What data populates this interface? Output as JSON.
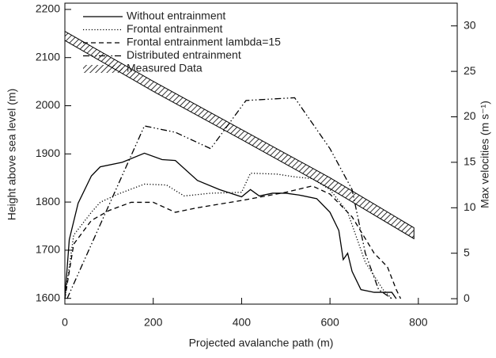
{
  "chart_data": {
    "type": "line",
    "xlabel": "Projected avalanche path (m)",
    "ylabel": "Height above sea level (m)",
    "y2label": "Max velocities (m s⁻¹)",
    "xlim": [
      0,
      888
    ],
    "xticks": [
      0,
      200,
      400,
      600,
      800
    ],
    "ylim": [
      1588,
      2213
    ],
    "yticks": [
      1600,
      1700,
      1800,
      1900,
      2000,
      2100,
      2200
    ],
    "y2lim": [
      -0.6,
      32.5
    ],
    "y2ticks": [
      0,
      5,
      10,
      15,
      20,
      25,
      30
    ],
    "color": "#000000",
    "series": [
      {
        "name": "Without entrainment",
        "style": "solid",
        "axis": "y2",
        "x": [
          0,
          10,
          30,
          60,
          80,
          130,
          180,
          220,
          250,
          300,
          350,
          400,
          420,
          440,
          470,
          500,
          530,
          570,
          600,
          620,
          630,
          640,
          650,
          670,
          700,
          740,
          750
        ],
        "values": [
          0,
          6.5,
          10.5,
          13.5,
          14.5,
          15,
          16,
          15.3,
          15.2,
          13,
          12,
          11.2,
          12,
          11.3,
          11.6,
          11.6,
          11.4,
          11,
          9.5,
          7.5,
          4.3,
          5,
          3,
          1,
          0.7,
          0.7,
          0
        ]
      },
      {
        "name": "Frontal entrainment",
        "style": "dotted",
        "axis": "y2",
        "x": [
          0,
          20,
          60,
          80,
          120,
          180,
          230,
          270,
          330,
          400,
          420,
          480,
          520,
          560,
          600,
          640,
          680,
          720,
          740
        ],
        "values": [
          0,
          7,
          9.5,
          10.6,
          11.5,
          12.6,
          12.5,
          11.3,
          11.6,
          11.7,
          13.8,
          13.7,
          13.4,
          13.2,
          12,
          9.5,
          4,
          1,
          0
        ]
      },
      {
        "name": "Frontal entrainment lambda=15",
        "style": "dashed",
        "axis": "y2",
        "x": [
          0,
          20,
          60,
          100,
          150,
          200,
          250,
          300,
          400,
          500,
          560,
          600,
          650,
          700,
          730,
          750,
          760
        ],
        "values": [
          0,
          6,
          8.6,
          9.7,
          10.6,
          10.6,
          9.5,
          10,
          10.8,
          11.7,
          12.4,
          11.5,
          9,
          5,
          3.5,
          1,
          0
        ]
      },
      {
        "name": "Distributed entrainment",
        "style": "dashdot",
        "axis": "y2",
        "x": [
          5,
          180,
          250,
          330,
          410,
          520,
          600,
          650,
          680,
          710,
          740
        ],
        "values": [
          0,
          19,
          18.3,
          16.5,
          21.8,
          22.1,
          16.5,
          12,
          5,
          1,
          0
        ]
      },
      {
        "name": "Measured Data",
        "style": "hatched",
        "axis": "y2",
        "x": [
          0,
          200,
          400,
          600,
          790
        ],
        "lower": [
          28.4,
          22.8,
          17.5,
          12.1,
          6.6
        ],
        "upper": [
          29.4,
          23.9,
          18.6,
          13.3,
          7.8
        ]
      }
    ]
  }
}
